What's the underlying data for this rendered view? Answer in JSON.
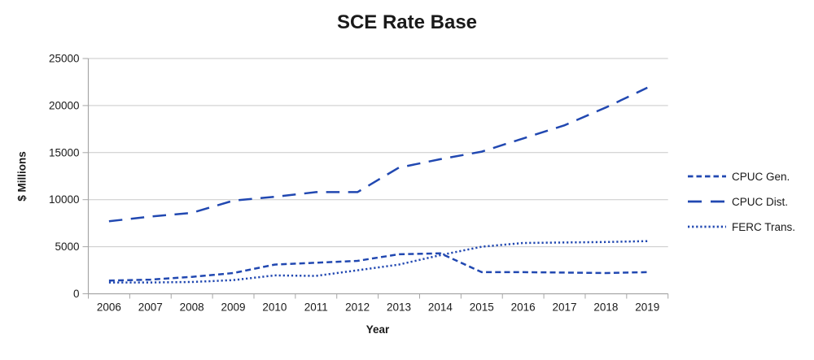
{
  "chart_data": {
    "type": "line",
    "title": "SCE Rate Base",
    "xlabel": "Year",
    "ylabel": "$ Millions",
    "categories": [
      "2006",
      "2007",
      "2008",
      "2009",
      "2010",
      "2011",
      "2012",
      "2013",
      "2014",
      "2015",
      "2016",
      "2017",
      "2018",
      "2019"
    ],
    "ylim": [
      0,
      25000
    ],
    "yticks": [
      0,
      5000,
      10000,
      15000,
      20000,
      25000
    ],
    "grid": true,
    "legend_position": "right",
    "series": [
      {
        "name": "CPUC Gen.",
        "dash": "short",
        "values": [
          1400,
          1500,
          1800,
          2200,
          3100,
          3300,
          3500,
          4200,
          4300,
          2300,
          2300,
          2250,
          2200,
          2300
        ]
      },
      {
        "name": "CPUC Dist.",
        "dash": "long",
        "values": [
          7700,
          8200,
          8600,
          9900,
          10300,
          10800,
          10800,
          13400,
          14300,
          15100,
          16500,
          17900,
          19800,
          21900
        ]
      },
      {
        "name": "FERC Trans.",
        "dash": "dot",
        "values": [
          1200,
          1200,
          1250,
          1450,
          1950,
          1900,
          2500,
          3100,
          4100,
          5000,
          5400,
          5450,
          5500,
          5600
        ]
      }
    ],
    "colors": {
      "line": "#2148b1",
      "gridline": "#c9c9c9",
      "axis": "#a6a6a6",
      "text": "#1a1a1a"
    }
  }
}
